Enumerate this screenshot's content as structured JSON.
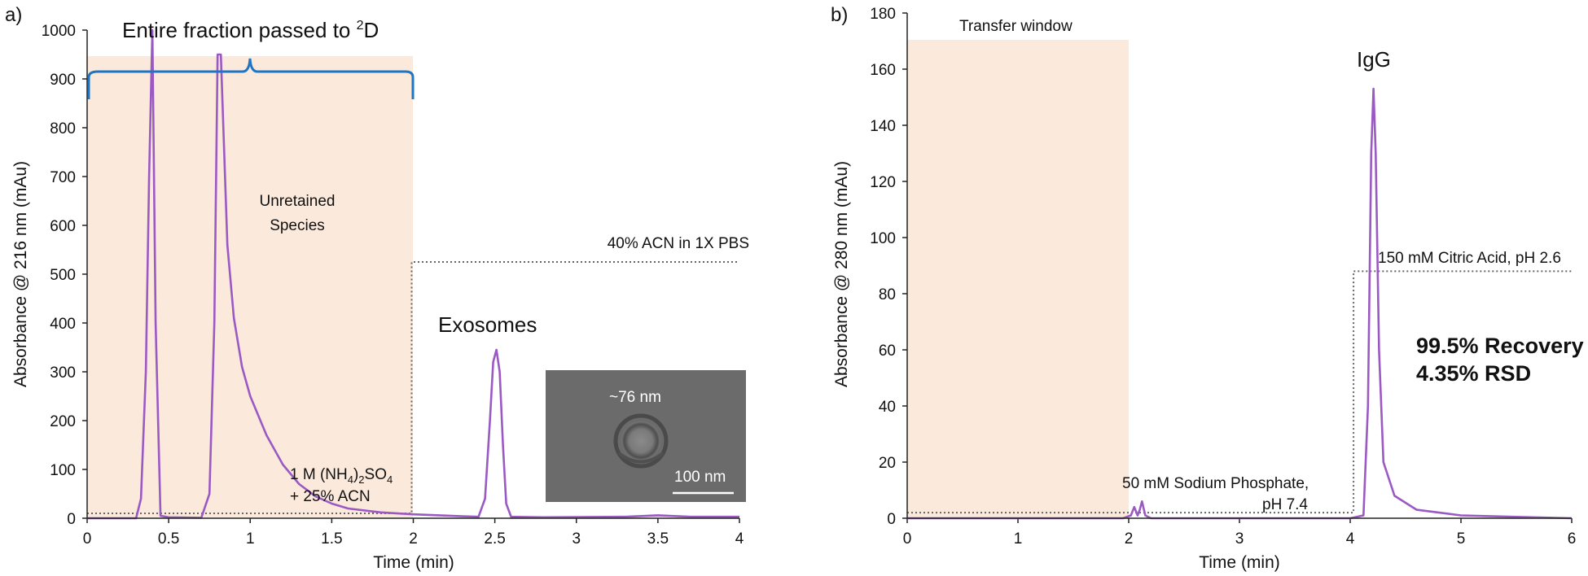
{
  "colors": {
    "trace": "#9b59c4",
    "window_fill": "#fbe9dc",
    "brace": "#1f75c4",
    "gradient_line": "#666666",
    "inset_bg": "#6f6f6f"
  },
  "chart_data": [
    {
      "type": "line",
      "panel_label": "a)",
      "xlabel": "Time (min)",
      "ylabel": "Absorbance @ 216 nm (mAu)",
      "xlim": [
        0,
        4
      ],
      "ylim": [
        0,
        1000
      ],
      "x_ticks": [
        "0",
        "0.5",
        "1",
        "1.5",
        "2",
        "2.5",
        "3",
        "3.5",
        "4"
      ],
      "y_ticks": [
        "0",
        "100",
        "200",
        "300",
        "400",
        "500",
        "600",
        "700",
        "800",
        "900",
        "1000"
      ],
      "grid": false,
      "shaded_window": {
        "label": "Entire fraction passed to ²D",
        "x_range": [
          0,
          2
        ]
      },
      "series": [
        {
          "points": [
            [
              0,
              0
            ],
            [
              0.3,
              0
            ],
            [
              0.33,
              40
            ],
            [
              0.36,
              300
            ],
            [
              0.38,
              700
            ],
            [
              0.4,
              1000
            ],
            [
              0.42,
              400
            ],
            [
              0.45,
              5
            ],
            [
              0.5,
              2
            ],
            [
              0.7,
              1
            ],
            [
              0.75,
              50
            ],
            [
              0.78,
              400
            ],
            [
              0.8,
              950
            ],
            [
              0.82,
              950
            ],
            [
              0.86,
              560
            ],
            [
              0.9,
              410
            ],
            [
              0.95,
              310
            ],
            [
              1.0,
              250
            ],
            [
              1.1,
              170
            ],
            [
              1.2,
              110
            ],
            [
              1.3,
              70
            ],
            [
              1.4,
              45
            ],
            [
              1.5,
              30
            ],
            [
              1.6,
              20
            ],
            [
              1.8,
              12
            ],
            [
              2.0,
              8
            ],
            [
              2.3,
              4
            ],
            [
              2.4,
              3
            ],
            [
              2.44,
              40
            ],
            [
              2.47,
              200
            ],
            [
              2.49,
              320
            ],
            [
              2.51,
              345
            ],
            [
              2.53,
              300
            ],
            [
              2.55,
              150
            ],
            [
              2.57,
              30
            ],
            [
              2.6,
              3
            ],
            [
              2.8,
              2
            ],
            [
              3.3,
              3
            ],
            [
              3.5,
              6
            ],
            [
              3.7,
              3
            ],
            [
              4.0,
              3
            ]
          ]
        }
      ],
      "gradient": {
        "label": "40% ACN in 1X PBS",
        "initial_label_line1": "1 M (NH",
        "initial_label_line2": "+ 25% ACN",
        "step_x": 1.99,
        "level_before": 10,
        "level_after": 525
      },
      "annotations": {
        "unretained": [
          "Unretained",
          "Species"
        ],
        "exosomes": "Exosomes"
      },
      "inset": {
        "size_label": "~76 nm",
        "scale_label": "100 nm"
      }
    },
    {
      "type": "line",
      "panel_label": "b)",
      "xlabel": "Time (min)",
      "ylabel": "Absorbance @ 280 nm (mAu)",
      "xlim": [
        0,
        6
      ],
      "ylim": [
        0,
        180
      ],
      "x_ticks": [
        "0",
        "1",
        "2",
        "3",
        "4",
        "5",
        "6"
      ],
      "y_ticks": [
        "0",
        "20",
        "40",
        "60",
        "80",
        "100",
        "120",
        "140",
        "160",
        "180"
      ],
      "grid": false,
      "shaded_window": {
        "label": "Transfer window",
        "x_range": [
          0,
          2
        ],
        "y_top": 170
      },
      "series": [
        {
          "points": [
            [
              0,
              0
            ],
            [
              1.95,
              0
            ],
            [
              2.02,
              1
            ],
            [
              2.05,
              4
            ],
            [
              2.08,
              1
            ],
            [
              2.1,
              3
            ],
            [
              2.12,
              6
            ],
            [
              2.15,
              1
            ],
            [
              2.2,
              0
            ],
            [
              4.0,
              0
            ],
            [
              4.12,
              1
            ],
            [
              4.16,
              40
            ],
            [
              4.19,
              130
            ],
            [
              4.21,
              153
            ],
            [
              4.23,
              130
            ],
            [
              4.26,
              60
            ],
            [
              4.3,
              20
            ],
            [
              4.4,
              8
            ],
            [
              4.6,
              3
            ],
            [
              5.0,
              1
            ],
            [
              5.5,
              0.5
            ],
            [
              6.0,
              0
            ]
          ]
        }
      ],
      "gradient": {
        "label": "150 mM Citric Acid, pH 2.6",
        "initial_label_line1": "50 mM Sodium Phosphate,",
        "initial_label_line2": "pH 7.4",
        "step_x": 4.03,
        "level_before": 2,
        "level_after": 88
      },
      "annotations": {
        "peak": "IgG",
        "recovery": "99.5% Recovery",
        "rsd": "4.35% RSD"
      }
    }
  ]
}
